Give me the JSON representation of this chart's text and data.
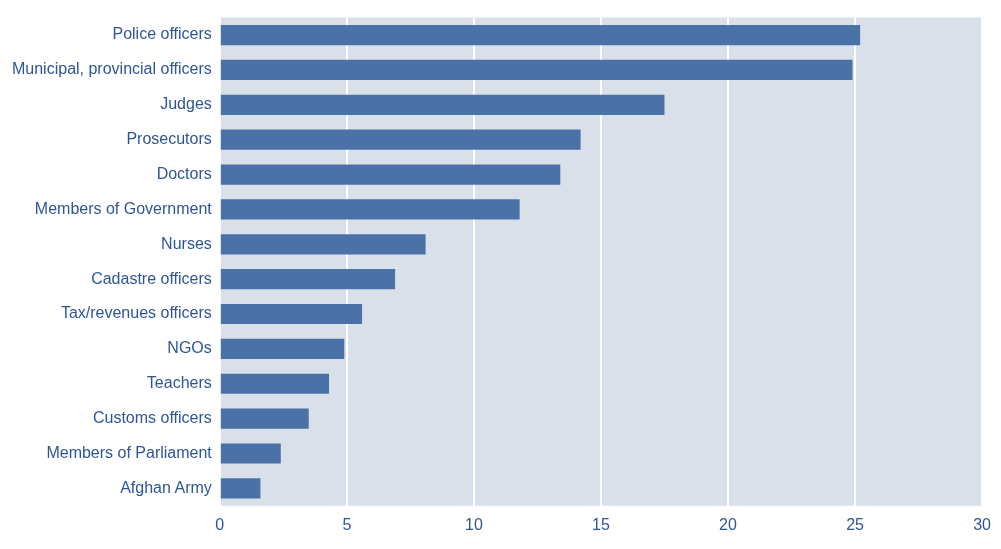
{
  "chart_data": {
    "type": "bar",
    "orientation": "horizontal",
    "categories": [
      "Police officers",
      "Municipal, provincial officers",
      "Judges",
      "Prosecutors",
      "Doctors",
      "Members of Government",
      "Nurses",
      "Cadastre officers",
      "Tax/revenues officers",
      "NGOs",
      "Teachers",
      "Customs officers",
      "Members of Parliament",
      "Afghan Army"
    ],
    "values": [
      25.2,
      24.9,
      17.5,
      14.2,
      13.4,
      11.8,
      8.1,
      6.9,
      5.6,
      4.9,
      4.3,
      3.5,
      2.4,
      1.6
    ],
    "color": "#4a72a6",
    "xlim": [
      0,
      30
    ],
    "xticks": [
      0,
      5,
      10,
      15,
      20,
      25,
      30
    ],
    "grid": "x",
    "legend": false
  }
}
